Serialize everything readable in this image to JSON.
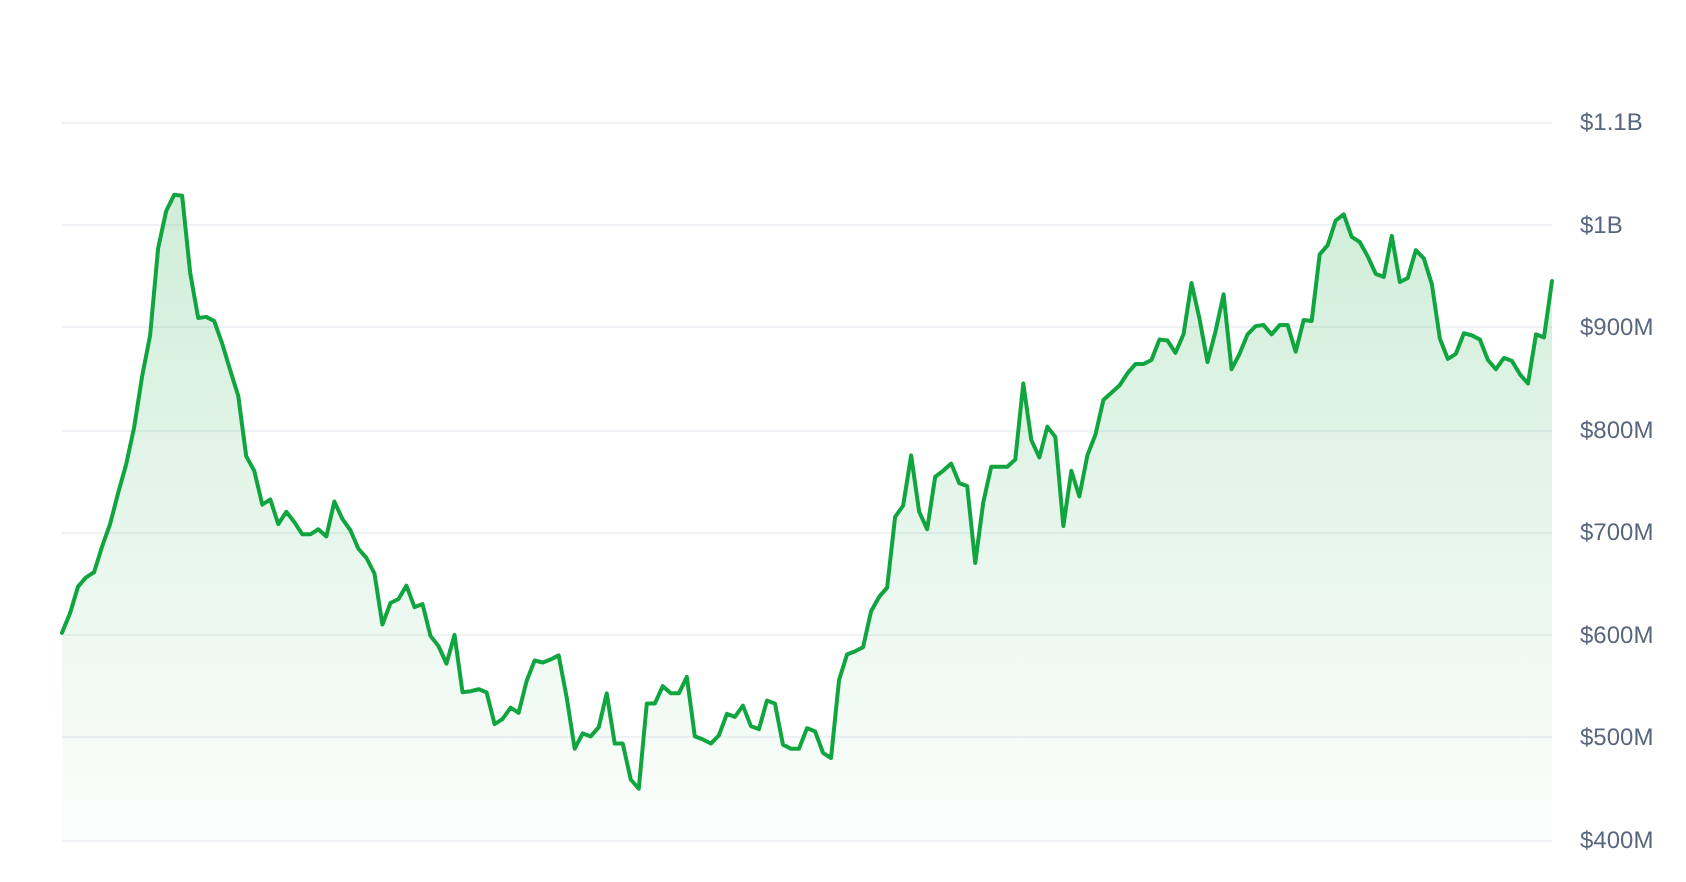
{
  "chart_data": {
    "type": "area",
    "categories": [
      null,
      null,
      null,
      null,
      null,
      null,
      null,
      null,
      null,
      null,
      null,
      null,
      null,
      null,
      null,
      null,
      null,
      null,
      null,
      null,
      null,
      null,
      null,
      null,
      null,
      null,
      null,
      null,
      null,
      null,
      null,
      null,
      null,
      null,
      null,
      null,
      null,
      null,
      null,
      null,
      null,
      null,
      null,
      null,
      null,
      null,
      null,
      null,
      null,
      null,
      null,
      null,
      null,
      null,
      null,
      null,
      null,
      null,
      null,
      null,
      null,
      null,
      null,
      null,
      null,
      null,
      null,
      null,
      null,
      null,
      null,
      null,
      null,
      null,
      null,
      null,
      null,
      null,
      null,
      null,
      null,
      null,
      null,
      null,
      null,
      null,
      null,
      null,
      null,
      null,
      null,
      null,
      null,
      null,
      null,
      null,
      null,
      null,
      null,
      null,
      null,
      null,
      null,
      null,
      null,
      null,
      null,
      null,
      null,
      null,
      null,
      null,
      null,
      null,
      null,
      null,
      null,
      null,
      null,
      null,
      null,
      null,
      null,
      null,
      null,
      null,
      null,
      null,
      null,
      null,
      null,
      null,
      null,
      null,
      null,
      null,
      null,
      null,
      null,
      null,
      null,
      null,
      null,
      null,
      null,
      null,
      null,
      null,
      null,
      null,
      null,
      null,
      null,
      null,
      null,
      null,
      null,
      null,
      null,
      null,
      null,
      null,
      null,
      null,
      null,
      null,
      null,
      null,
      null,
      null,
      null,
      null,
      null,
      null,
      null,
      null,
      null,
      null,
      null,
      null,
      null,
      null,
      null,
      null,
      null,
      null,
      null
    ],
    "series": [
      {
        "color": "#10a53f",
        "values": [
          602000000.0,
          621000000.0,
          647000000.0,
          656000000.0,
          661000000.0,
          686000000.0,
          708000000.0,
          738000000.0,
          766000000.0,
          802000000.0,
          852000000.0,
          892000000.0,
          977000000.0,
          1013000000.0,
          1029000000.0,
          1028000000.0,
          953000000.0,
          909000000.0,
          910000000.0,
          906000000.0,
          884000000.0,
          858000000.0,
          833000000.0,
          774000000.0,
          760000000.0,
          727000000.0,
          732000000.0,
          708000000.0,
          720000000.0,
          710000000.0,
          698000000.0,
          698000000.0,
          703000000.0,
          696000000.0,
          730000000.0,
          713000000.0,
          702000000.0,
          684000000.0,
          675000000.0,
          660000000.0,
          610000000.0,
          631000000.0,
          635000000.0,
          648000000.0,
          627000000.0,
          630000000.0,
          599000000.0,
          589000000.0,
          572000000.0,
          600000000.0,
          544000000.0,
          545000000.0,
          547000000.0,
          544000000.0,
          513000000.0,
          518000000.0,
          529000000.0,
          524000000.0,
          555000000.0,
          575000000.0,
          573000000.0,
          576000000.0,
          580000000.0,
          539000000.0,
          489000000.0,
          504000000.0,
          501000000.0,
          510000000.0,
          543000000.0,
          494000000.0,
          494000000.0,
          459000000.0,
          450000000.0,
          533000000.0,
          533000000.0,
          550000000.0,
          543000000.0,
          543000000.0,
          559000000.0,
          501000000.0,
          498000000.0,
          494000000.0,
          502000000.0,
          523000000.0,
          520000000.0,
          531000000.0,
          511000000.0,
          508000000.0,
          536000000.0,
          533000000.0,
          493000000.0,
          489000000.0,
          489000000.0,
          509000000.0,
          506000000.0,
          485000000.0,
          480000000.0,
          556000000.0,
          581000000.0,
          584000000.0,
          588000000.0,
          623000000.0,
          637000000.0,
          646000000.0,
          715000000.0,
          726000000.0,
          775000000.0,
          720000000.0,
          703000000.0,
          754000000.0,
          760000000.0,
          767000000.0,
          748000000.0,
          745000000.0,
          670000000.0,
          729000000.0,
          764000000.0,
          764000000.0,
          764000000.0,
          771000000.0,
          845000000.0,
          790000000.0,
          773000000.0,
          803000000.0,
          793000000.0,
          706000000.0,
          760000000.0,
          735000000.0,
          775000000.0,
          795000000.0,
          829000000.0,
          836000000.0,
          843000000.0,
          855000000.0,
          864000000.0,
          864000000.0,
          868000000.0,
          888000000.0,
          887000000.0,
          875000000.0,
          893000000.0,
          943000000.0,
          908000000.0,
          866000000.0,
          896000000.0,
          932000000.0,
          859000000.0,
          874000000.0,
          893000000.0,
          901000000.0,
          902000000.0,
          893000000.0,
          902000000.0,
          902000000.0,
          876000000.0,
          907000000.0,
          906000000.0,
          971000000.0,
          980000000.0,
          1004000000.0,
          1010000000.0,
          988000000.0,
          983000000.0,
          969000000.0,
          952000000.0,
          949000000.0,
          989000000.0,
          944000000.0,
          948000000.0,
          975000000.0,
          967000000.0,
          942000000.0,
          889000000.0,
          869000000.0,
          874000000.0,
          894000000.0,
          892000000.0,
          888000000.0,
          868000000.0,
          859000000.0,
          870000000.0,
          867000000.0,
          854000000.0,
          845000000.0,
          893000000.0,
          890000000.0,
          945000000.0
        ]
      }
    ],
    "ylim": [
      400000000.0,
      1100000000.0
    ],
    "yticks": [
      {
        "value": 400000000.0,
        "label": "$400M"
      },
      {
        "value": 500000000.0,
        "label": "$500M"
      },
      {
        "value": 600000000.0,
        "label": "$600M"
      },
      {
        "value": 700000000.0,
        "label": "$700M"
      },
      {
        "value": 800000000.0,
        "label": "$800M"
      },
      {
        "value": 900000000.0,
        "label": "$900M"
      },
      {
        "value": 1000000000.0,
        "label": "$1B"
      },
      {
        "value": 1100000000.0,
        "label": "$1.1B"
      }
    ],
    "grid": "y",
    "line_style": "solid",
    "tick_labels": "y"
  }
}
